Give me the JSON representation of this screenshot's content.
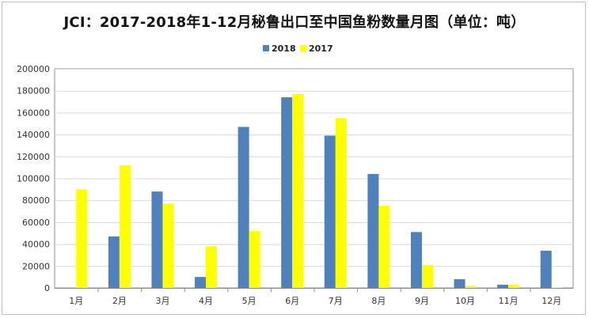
{
  "colors": {
    "series_2018": "#4F81BD",
    "series_2017": "#FFFF00",
    "grid": "#d9d9d9",
    "axis": "#8c8c8c"
  },
  "chart_data": {
    "type": "bar",
    "title": "JCI：2017-2018年1-12月秘鲁出口至中国鱼粉数量月图（单位：吨）",
    "xlabel": "",
    "ylabel": "",
    "ylim": [
      0,
      200000
    ],
    "yticks": [
      "0",
      "20000",
      "40000",
      "60000",
      "80000",
      "100000",
      "120000",
      "140000",
      "160000",
      "180000",
      "200000"
    ],
    "categories": [
      "1月",
      "2月",
      "3月",
      "4月",
      "5月",
      "6月",
      "7月",
      "8月",
      "9月",
      "10月",
      "11月",
      "12月"
    ],
    "series": [
      {
        "name": "2018",
        "values": [
          0,
          47000,
          88000,
          10000,
          147000,
          174000,
          139000,
          104000,
          51000,
          8000,
          3000,
          34000
        ]
      },
      {
        "name": "2017",
        "values": [
          90000,
          112000,
          77000,
          38000,
          52000,
          177000,
          155000,
          75000,
          21000,
          2000,
          3000,
          500
        ]
      }
    ],
    "grid": true,
    "legend_position": "top"
  }
}
